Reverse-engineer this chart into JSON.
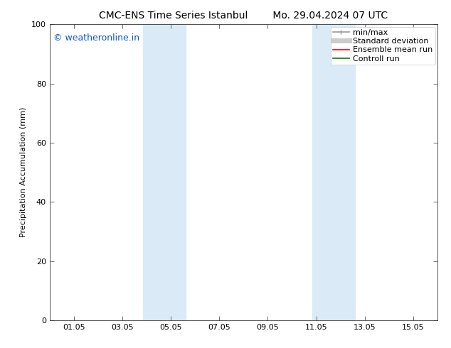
{
  "title": "CMC-ENS Time Series Istanbul        Mo. 29.04.2024 07 UTC",
  "ylabel": "Precipitation Accumulation (mm)",
  "xlim": [
    0,
    16
  ],
  "ylim": [
    0,
    100
  ],
  "yticks": [
    0,
    20,
    40,
    60,
    80,
    100
  ],
  "xtick_positions": [
    1,
    3,
    5,
    7,
    9,
    11,
    13,
    15
  ],
  "xtick_labels": [
    "01.05",
    "03.05",
    "05.05",
    "07.05",
    "09.05",
    "11.05",
    "13.05",
    "15.05"
  ],
  "shaded_bands": [
    {
      "xmin": 3.85,
      "xmax": 5.6
    },
    {
      "xmin": 10.85,
      "xmax": 12.6
    }
  ],
  "shade_color": "#daeaf7",
  "watermark_text": "© weatheronline.in",
  "watermark_color": "#1155cc",
  "legend_entries": [
    {
      "label": "min/max",
      "color": "#999999",
      "lw": 1.2,
      "style": "line_with_caps"
    },
    {
      "label": "Standard deviation",
      "color": "#cccccc",
      "lw": 5,
      "style": "line"
    },
    {
      "label": "Ensemble mean run",
      "color": "red",
      "lw": 1.2,
      "style": "line"
    },
    {
      "label": "Controll run",
      "color": "green",
      "lw": 1.2,
      "style": "line"
    }
  ],
  "bg_color": "#ffffff",
  "plot_bg_color": "#ffffff",
  "font_size": 8,
  "title_font_size": 10,
  "watermark_font_size": 9
}
